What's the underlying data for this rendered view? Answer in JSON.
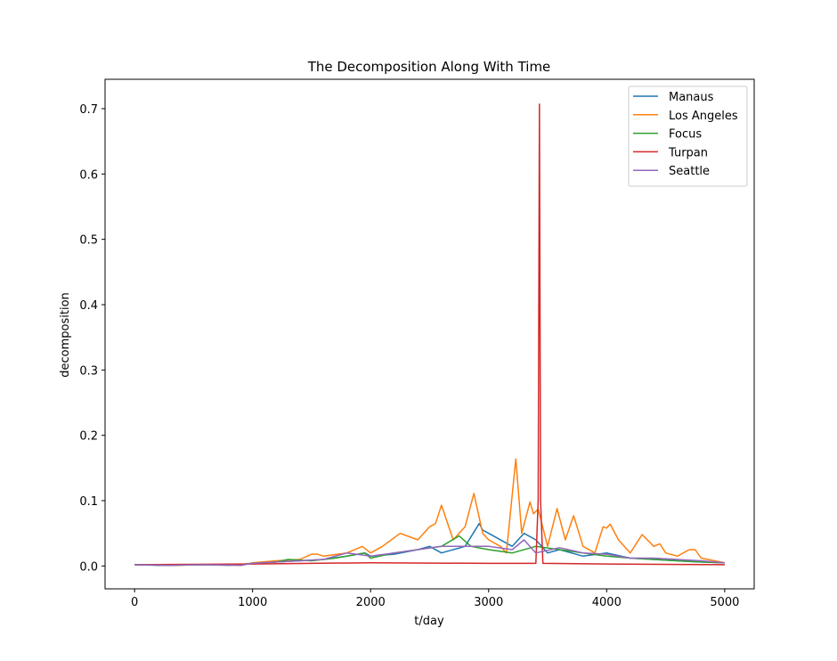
{
  "chart_data": {
    "type": "line",
    "title": "The Decomposition Along With Time",
    "xlabel": "t/day",
    "ylabel": "decomposition",
    "xlim": [
      -250,
      5250
    ],
    "ylim": [
      -0.035,
      0.745
    ],
    "xticks": [
      0,
      1000,
      2000,
      3000,
      4000,
      5000
    ],
    "yticks": [
      0.0,
      0.1,
      0.2,
      0.3,
      0.4,
      0.5,
      0.6,
      0.7
    ],
    "yticklabels": [
      "0.0",
      "0.1",
      "0.2",
      "0.3",
      "0.4",
      "0.5",
      "0.6",
      "0.7"
    ],
    "grid": false,
    "legend_position": "top-right",
    "series": [
      {
        "name": "Manaus",
        "color": "#1f77b4",
        "x": [
          0,
          200,
          500,
          800,
          1000,
          1200,
          1400,
          1600,
          1800,
          1950,
          2000,
          2200,
          2400,
          2500,
          2600,
          2800,
          2920,
          2950,
          3000,
          3200,
          3300,
          3400,
          3500,
          3600,
          3800,
          4000,
          4200,
          4400,
          4600,
          4800,
          5000
        ],
        "values": [
          0.002,
          0.001,
          0.002,
          0.001,
          0.004,
          0.006,
          0.008,
          0.01,
          0.015,
          0.02,
          0.015,
          0.018,
          0.025,
          0.03,
          0.02,
          0.03,
          0.065,
          0.055,
          0.05,
          0.03,
          0.05,
          0.04,
          0.02,
          0.025,
          0.015,
          0.02,
          0.012,
          0.01,
          0.008,
          0.006,
          0.005
        ]
      },
      {
        "name": "Los Angeles",
        "color": "#ff7f0e",
        "x": [
          0,
          300,
          600,
          900,
          1000,
          1200,
          1400,
          1500,
          1550,
          1600,
          1800,
          1930,
          2000,
          2100,
          2250,
          2400,
          2500,
          2550,
          2600,
          2700,
          2800,
          2875,
          2950,
          3000,
          3100,
          3150,
          3230,
          3280,
          3350,
          3380,
          3420,
          3500,
          3580,
          3650,
          3720,
          3800,
          3900,
          3970,
          4000,
          4030,
          4100,
          4200,
          4300,
          4400,
          4450,
          4500,
          4600,
          4700,
          4750,
          4800,
          5000
        ],
        "values": [
          0.002,
          0.001,
          0.002,
          0.001,
          0.005,
          0.008,
          0.01,
          0.018,
          0.018,
          0.015,
          0.02,
          0.03,
          0.02,
          0.03,
          0.05,
          0.04,
          0.06,
          0.065,
          0.093,
          0.04,
          0.06,
          0.111,
          0.05,
          0.04,
          0.03,
          0.02,
          0.164,
          0.05,
          0.098,
          0.08,
          0.087,
          0.03,
          0.088,
          0.04,
          0.077,
          0.03,
          0.02,
          0.06,
          0.058,
          0.064,
          0.04,
          0.02,
          0.048,
          0.03,
          0.034,
          0.02,
          0.015,
          0.025,
          0.025,
          0.012,
          0.005
        ]
      },
      {
        "name": "Focus",
        "color": "#2ca02c",
        "x": [
          0,
          300,
          600,
          900,
          1000,
          1200,
          1300,
          1500,
          1700,
          1800,
          1950,
          2000,
          2200,
          2400,
          2600,
          2750,
          2850,
          3000,
          3200,
          3400,
          3600,
          3800,
          4000,
          4200,
          4400,
          4600,
          4800,
          5000
        ],
        "values": [
          0.002,
          0.001,
          0.002,
          0.002,
          0.004,
          0.006,
          0.01,
          0.008,
          0.012,
          0.015,
          0.02,
          0.012,
          0.02,
          0.025,
          0.03,
          0.046,
          0.03,
          0.025,
          0.02,
          0.03,
          0.025,
          0.02,
          0.015,
          0.012,
          0.01,
          0.008,
          0.006,
          0.005
        ]
      },
      {
        "name": "Turpan",
        "color": "#d62728",
        "x": [
          0,
          1000,
          2000,
          3000,
          3400,
          3420,
          3430,
          3440,
          3460,
          4000,
          5000
        ],
        "values": [
          0.002,
          0.003,
          0.005,
          0.004,
          0.004,
          0.1,
          0.707,
          0.1,
          0.004,
          0.003,
          0.002
        ]
      },
      {
        "name": "Seattle",
        "color": "#9467bd",
        "x": [
          0,
          300,
          600,
          900,
          1000,
          1200,
          1400,
          1600,
          1800,
          2000,
          2200,
          2400,
          2600,
          2800,
          3000,
          3200,
          3300,
          3400,
          3600,
          3800,
          4000,
          4200,
          4400,
          4600,
          4800,
          5000
        ],
        "values": [
          0.002,
          0.001,
          0.002,
          0.001,
          0.004,
          0.006,
          0.008,
          0.01,
          0.02,
          0.015,
          0.02,
          0.025,
          0.03,
          0.03,
          0.03,
          0.025,
          0.04,
          0.02,
          0.028,
          0.02,
          0.018,
          0.012,
          0.012,
          0.01,
          0.008,
          0.005
        ]
      }
    ]
  }
}
